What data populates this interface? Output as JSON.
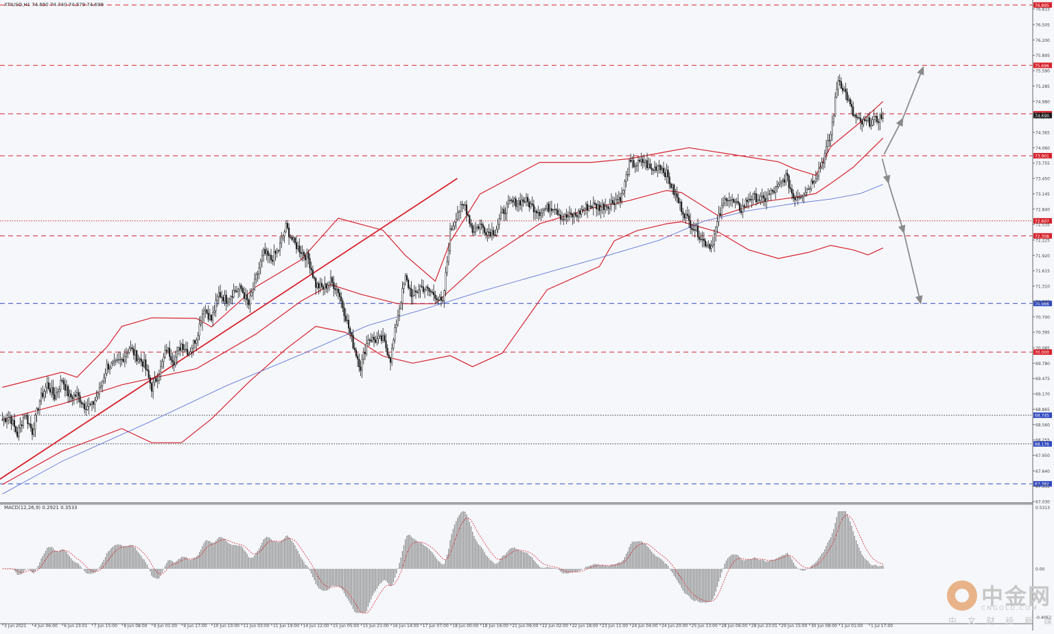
{
  "header": {
    "symbol_info": "XTIUSO,H1  74.650 74.740 74.579 74.699"
  },
  "macd": {
    "label": "MACD(12,26,9) 0.2921 0.3533",
    "top_value": "0.5313",
    "zero_value": "0.00",
    "bottom_value": "-0.4062"
  },
  "watermark": {
    "brand": "中金网",
    "url": "CNGOLD.COM",
    "sub": "中 文 财 经 新 媒 体"
  },
  "colors": {
    "background": "#f5f7fb",
    "bollinger": "#d8202a",
    "ma": "#4d64d6",
    "candle": "#1a1a1a",
    "resistance": "#d8202a",
    "support": "#3048c0",
    "projection": "#8a8a8a",
    "macd_bar": "#808080",
    "macd_signal": "#d8202a"
  },
  "chart_data": {
    "type": "candlestick",
    "title": "",
    "ylim": [
      67.03,
      76.94
    ],
    "price_scale": [
      "76.815",
      "76.505",
      "76.200",
      "75.895",
      "75.590",
      "75.285",
      "74.980",
      "74.670",
      "74.365",
      "74.060",
      "73.755",
      "73.450",
      "73.145",
      "72.840",
      "72.535",
      "72.225",
      "71.920",
      "71.615",
      "71.310",
      "71.005",
      "70.700",
      "70.395",
      "70.085",
      "69.780",
      "69.475",
      "69.170",
      "68.865",
      "68.560",
      "68.255",
      "67.950",
      "67.640",
      "67.335",
      "67.030"
    ],
    "time_axis": [
      "3 Jun 2021",
      "4 Jun 06:00",
      "6 Jun 23:01",
      "7 Jun 15:00",
      "8 Jun 08:00",
      "9 Jun 01:00",
      "9 Jun 17:00",
      "10 Jun 10:00",
      "11 Jun 03:00",
      "11 Jun 19:00",
      "14 Jun 12:00",
      "15 Jun 05:00",
      "15 Jun 21:00",
      "16 Jun 14:00",
      "17 Jun 07:00",
      "18 Jun 00:00",
      "18 Jun 16:00",
      "21 Jun 09:00",
      "22 Jun 02:00",
      "22 Jun 18:00",
      "23 Jun 11:00",
      "24 Jun 04:00",
      "24 Jun 20:00",
      "25 Jun 13:00",
      "28 Jun 06:00",
      "28 Jun 23:01",
      "29 Jun 15:00",
      "30 Jun 08:00",
      "1 Jul 01:00",
      "1 Jul 17:00"
    ],
    "levels": [
      {
        "value": 76.895,
        "label": "76.895",
        "style": "dashed",
        "color": "#d8202a",
        "bg": "#d8202a"
      },
      {
        "value": 75.696,
        "label": "75.696",
        "style": "dashed",
        "color": "#d8202a",
        "bg": "#d8202a"
      },
      {
        "value": 74.734,
        "label": "74.734",
        "style": "dashed",
        "color": "#d8202a",
        "bg": "#d8202a"
      },
      {
        "value": 73.901,
        "label": "73.901",
        "style": "dashed",
        "color": "#d8202a",
        "bg": "#d8202a"
      },
      {
        "value": 72.607,
        "label": "72.607",
        "style": "dotted",
        "color": "#d8202a",
        "bg": "#d8202a"
      },
      {
        "value": 72.308,
        "label": "72.308",
        "style": "dashed",
        "color": "#d8202a",
        "bg": "#d8202a"
      },
      {
        "value": 70.966,
        "label": "70.966",
        "style": "dashed",
        "color": "#3048c0",
        "bg": "#3048c0"
      },
      {
        "value": 70.0,
        "label": "70.000",
        "style": "dashed",
        "color": "#d8202a",
        "bg": "#d8202a"
      },
      {
        "value": 68.745,
        "label": "68.745",
        "style": "dotted",
        "color": "#333333",
        "bg": "#3048c0"
      },
      {
        "value": 68.176,
        "label": "68.176",
        "style": "dotted",
        "color": "#333333",
        "bg": "#3048c0"
      },
      {
        "value": 67.382,
        "label": "67.382",
        "style": "dashed",
        "color": "#3048c0",
        "bg": "#3048c0"
      }
    ],
    "current_price": {
      "value": 74.699,
      "label": "74.699"
    },
    "trendline": [
      [
        -12.2,
        67.27
      ],
      [
        304.8,
        73.45
      ]
    ],
    "close_path": [
      [
        0,
        68.66
      ],
      [
        5,
        68.72
      ],
      [
        10,
        68.36
      ],
      [
        15,
        68.78
      ],
      [
        20,
        68.42
      ],
      [
        25,
        69.04
      ],
      [
        30,
        69.36
      ],
      [
        35,
        69.11
      ],
      [
        40,
        69.46
      ],
      [
        45,
        69.1
      ],
      [
        50,
        69.15
      ],
      [
        55,
        68.94
      ],
      [
        60,
        68.93
      ],
      [
        65,
        69.24
      ],
      [
        70,
        69.72
      ],
      [
        75,
        69.74
      ],
      [
        80,
        69.85
      ],
      [
        85,
        70.09
      ],
      [
        90,
        69.91
      ],
      [
        95,
        69.76
      ],
      [
        100,
        69.29
      ],
      [
        105,
        69.58
      ],
      [
        110,
        70.07
      ],
      [
        115,
        69.83
      ],
      [
        120,
        70.16
      ],
      [
        125,
        69.99
      ],
      [
        130,
        70.3
      ],
      [
        135,
        70.89
      ],
      [
        140,
        70.64
      ],
      [
        145,
        71.16
      ],
      [
        150,
        71.04
      ],
      [
        155,
        71.21
      ],
      [
        160,
        71.26
      ],
      [
        165,
        70.94
      ],
      [
        170,
        71.47
      ],
      [
        175,
        71.97
      ],
      [
        180,
        71.84
      ],
      [
        185,
        72.03
      ],
      [
        190,
        72.49
      ],
      [
        195,
        72.18
      ],
      [
        200,
        72.01
      ],
      [
        205,
        71.86
      ],
      [
        210,
        71.33
      ],
      [
        215,
        71.27
      ],
      [
        220,
        71.41
      ],
      [
        225,
        71.22
      ],
      [
        230,
        70.7
      ],
      [
        235,
        70.15
      ],
      [
        240,
        69.7
      ],
      [
        245,
        70.28
      ],
      [
        250,
        70.24
      ],
      [
        255,
        70.25
      ],
      [
        260,
        69.86
      ],
      [
        265,
        70.76
      ],
      [
        270,
        71.47
      ],
      [
        275,
        71.09
      ],
      [
        280,
        71.3
      ],
      [
        285,
        71.22
      ],
      [
        290,
        71.14
      ],
      [
        295,
        70.94
      ],
      [
        300,
        72.38
      ],
      [
        305,
        72.8
      ],
      [
        310,
        72.92
      ],
      [
        315,
        72.41
      ],
      [
        320,
        72.53
      ],
      [
        325,
        72.39
      ],
      [
        330,
        72.4
      ],
      [
        335,
        72.77
      ],
      [
        340,
        72.96
      ],
      [
        345,
        72.98
      ],
      [
        350,
        73.02
      ],
      [
        355,
        72.89
      ],
      [
        360,
        72.79
      ],
      [
        365,
        72.86
      ],
      [
        370,
        72.9
      ],
      [
        375,
        72.66
      ],
      [
        380,
        72.7
      ],
      [
        385,
        72.73
      ],
      [
        390,
        72.86
      ],
      [
        395,
        72.92
      ],
      [
        400,
        72.88
      ],
      [
        405,
        72.92
      ],
      [
        410,
        73.01
      ],
      [
        415,
        73.1
      ],
      [
        420,
        73.73
      ],
      [
        425,
        73.73
      ],
      [
        430,
        73.79
      ],
      [
        435,
        73.61
      ],
      [
        440,
        73.73
      ],
      [
        445,
        73.53
      ],
      [
        450,
        73.17
      ],
      [
        455,
        72.86
      ],
      [
        460,
        72.59
      ],
      [
        465,
        72.42
      ],
      [
        470,
        72.19
      ],
      [
        475,
        72.11
      ],
      [
        480,
        72.67
      ],
      [
        485,
        73.1
      ],
      [
        490,
        72.96
      ],
      [
        495,
        72.83
      ],
      [
        500,
        73.06
      ],
      [
        505,
        73.07
      ],
      [
        510,
        73.01
      ],
      [
        515,
        73.16
      ],
      [
        520,
        73.27
      ],
      [
        525,
        73.5
      ],
      [
        530,
        73.08
      ],
      [
        535,
        73.13
      ],
      [
        540,
        73.27
      ],
      [
        545,
        73.51
      ],
      [
        550,
        73.83
      ],
      [
        555,
        74.32
      ],
      [
        560,
        75.44
      ],
      [
        565,
        75.14
      ],
      [
        570,
        74.72
      ],
      [
        575,
        74.54
      ],
      [
        580,
        74.57
      ],
      [
        585,
        74.6
      ],
      [
        590,
        74.7
      ]
    ],
    "bb_upper": [
      [
        0,
        69.3
      ],
      [
        40,
        69.6
      ],
      [
        50,
        69.5
      ],
      [
        70,
        70.1
      ],
      [
        80,
        70.51
      ],
      [
        100,
        70.68
      ],
      [
        130,
        70.67
      ],
      [
        140,
        70.5
      ],
      [
        170,
        71.3
      ],
      [
        200,
        71.83
      ],
      [
        225,
        72.66
      ],
      [
        255,
        72.42
      ],
      [
        270,
        71.92
      ],
      [
        290,
        71.41
      ],
      [
        300,
        72.19
      ],
      [
        320,
        73.14
      ],
      [
        360,
        73.77
      ],
      [
        395,
        73.77
      ],
      [
        420,
        73.84
      ],
      [
        445,
        73.98
      ],
      [
        460,
        74.06
      ],
      [
        490,
        73.92
      ],
      [
        520,
        73.78
      ],
      [
        530,
        73.65
      ],
      [
        545,
        73.51
      ],
      [
        555,
        74.08
      ],
      [
        575,
        74.57
      ],
      [
        590,
        74.98
      ]
    ],
    "bb_middle": [
      [
        0,
        68.66
      ],
      [
        40,
        68.97
      ],
      [
        80,
        69.35
      ],
      [
        100,
        69.48
      ],
      [
        130,
        69.67
      ],
      [
        170,
        70.36
      ],
      [
        200,
        71.01
      ],
      [
        220,
        71.34
      ],
      [
        240,
        71.15
      ],
      [
        265,
        70.96
      ],
      [
        290,
        70.96
      ],
      [
        320,
        71.77
      ],
      [
        360,
        72.55
      ],
      [
        395,
        72.86
      ],
      [
        420,
        73.01
      ],
      [
        445,
        73.21
      ],
      [
        455,
        73.17
      ],
      [
        480,
        72.7
      ],
      [
        510,
        72.99
      ],
      [
        530,
        73.07
      ],
      [
        545,
        73.15
      ],
      [
        555,
        73.35
      ],
      [
        570,
        73.67
      ],
      [
        590,
        74.25
      ]
    ],
    "bb_lower": [
      [
        0,
        67.37
      ],
      [
        40,
        68.03
      ],
      [
        80,
        68.48
      ],
      [
        100,
        68.2
      ],
      [
        120,
        68.2
      ],
      [
        140,
        68.67
      ],
      [
        165,
        69.4
      ],
      [
        190,
        70.06
      ],
      [
        210,
        70.51
      ],
      [
        230,
        70.39
      ],
      [
        255,
        69.92
      ],
      [
        275,
        69.78
      ],
      [
        300,
        69.93
      ],
      [
        315,
        69.71
      ],
      [
        335,
        69.98
      ],
      [
        365,
        71.24
      ],
      [
        400,
        71.7
      ],
      [
        410,
        72.21
      ],
      [
        425,
        72.41
      ],
      [
        445,
        72.55
      ],
      [
        455,
        72.59
      ],
      [
        480,
        72.38
      ],
      [
        500,
        72.03
      ],
      [
        520,
        71.86
      ],
      [
        540,
        71.98
      ],
      [
        555,
        72.12
      ],
      [
        570,
        72.03
      ],
      [
        580,
        71.93
      ],
      [
        590,
        72.07
      ]
    ],
    "ma": [
      [
        0,
        67.18
      ],
      [
        40,
        67.83
      ],
      [
        100,
        68.63
      ],
      [
        150,
        69.33
      ],
      [
        200,
        69.95
      ],
      [
        245,
        70.53
      ],
      [
        280,
        70.83
      ],
      [
        320,
        71.2
      ],
      [
        365,
        71.58
      ],
      [
        400,
        71.87
      ],
      [
        440,
        72.22
      ],
      [
        470,
        72.6
      ],
      [
        500,
        72.81
      ],
      [
        530,
        72.95
      ],
      [
        555,
        73.04
      ],
      [
        575,
        73.15
      ],
      [
        590,
        73.33
      ]
    ],
    "projection_arrows": [
      {
        "from": [
          1288.4,
          73.93
        ],
        "to": [
          1315.6,
          74.64
        ]
      },
      {
        "from": [
          1315.6,
          74.64
        ],
        "to": [
          1345.4,
          75.66
        ]
      },
      {
        "from": [
          1285.7,
          73.84
        ],
        "to": [
          1294.8,
          73.36
        ]
      },
      {
        "from": [
          1294.8,
          73.36
        ],
        "to": [
          1317.3,
          72.37
        ]
      },
      {
        "from": [
          1317.3,
          72.37
        ],
        "to": [
          1341.8,
          70.97
        ]
      }
    ],
    "macd_range": [
      -0.4062,
      0.5313
    ]
  }
}
